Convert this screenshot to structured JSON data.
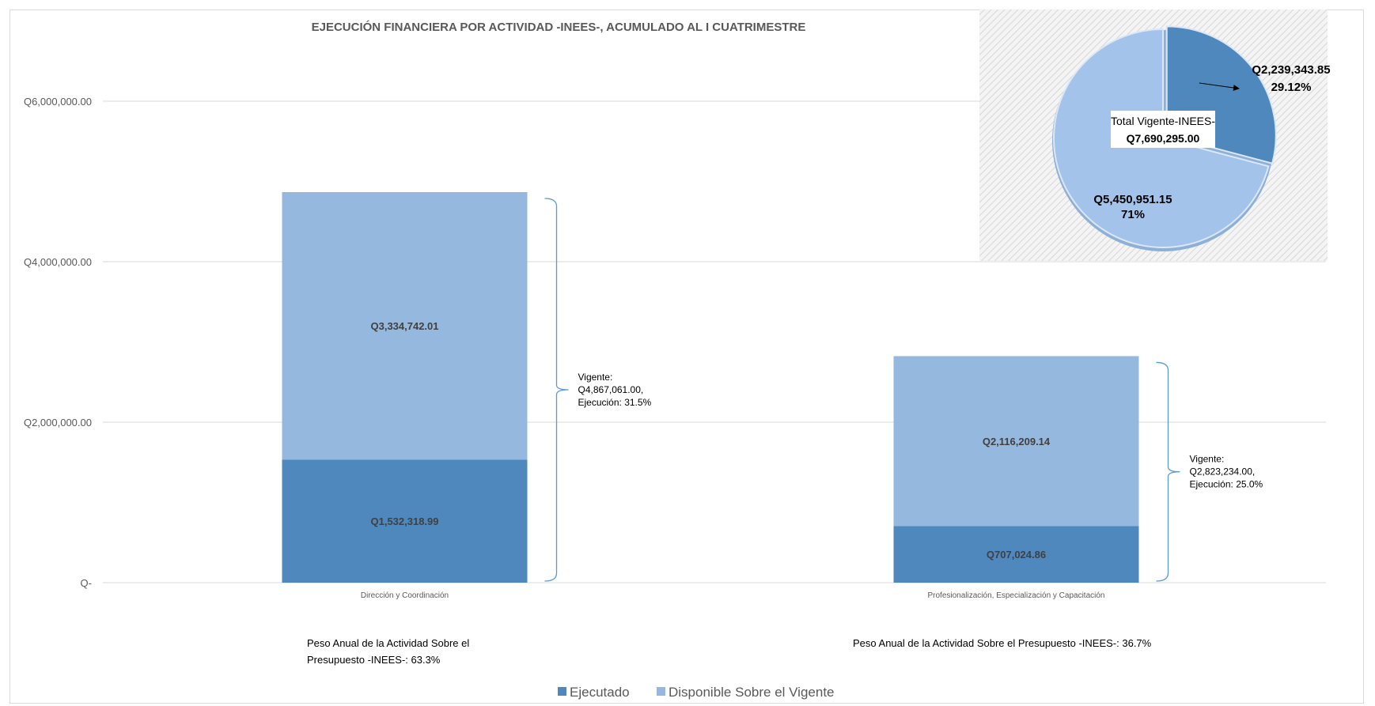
{
  "chart_data": [
    {
      "type": "bar",
      "stacked": true,
      "title": "EJECUCIÓN FINANCIERA POR ACTIVIDAD -INEES-, ACUMULADO AL I CUATRIMESTRE",
      "categories": [
        "Dirección y Coordinación",
        "Profesionalización, Especialización y Capacitación"
      ],
      "series": [
        {
          "name": "Ejecutado",
          "values": [
            1532318.99,
            707024.86
          ],
          "labels": [
            "Q1,532,318.99",
            "Q707,024.86"
          ],
          "color": "#4f88bd"
        },
        {
          "name": "Disponible Sobre el Vigente",
          "values": [
            3334742.01,
            2116209.14
          ],
          "labels": [
            "Q3,334,742.01",
            "Q2,116,209.14"
          ],
          "color": "#95b8df"
        }
      ],
      "ylim": [
        0,
        6000000
      ],
      "yticks": [
        {
          "value": 0,
          "label": "Q-"
        },
        {
          "value": 2000000,
          "label": "Q2,000,000.00"
        },
        {
          "value": 4000000,
          "label": "Q4,000,000.00"
        },
        {
          "value": 6000000,
          "label": "Q6,000,000.00"
        }
      ],
      "grid": true,
      "legend_position": "bottom",
      "annotations": [
        {
          "lines": [
            "Vigente:",
            "Q4,867,061.00,",
            "Ejecución: 31.5%"
          ]
        },
        {
          "lines": [
            "Vigente:",
            "Q2,823,234.00,",
            "Ejecución: 25.0%"
          ]
        }
      ],
      "notes": [
        {
          "lines": [
            "Peso  Anual de la Actividad Sobre el",
            "Presupuesto -INEES-: 63.3%"
          ]
        },
        {
          "lines": [
            "Peso  Anual de la Actividad Sobre el Presupuesto -INEES-: 36.7%"
          ]
        }
      ]
    },
    {
      "type": "pie",
      "slices": [
        {
          "value": 2239343.85,
          "amount_label": "Q2,239,343.85",
          "percent_label": "29.12%",
          "color": "#4f88bd"
        },
        {
          "value": 5450951.15,
          "amount_label": "Q5,450,951.15",
          "percent_label": "71%",
          "color": "#a3c3eb"
        }
      ],
      "center_label": {
        "line1": "Total Vigente-INEES-",
        "line2": "Q7,690,295.00"
      }
    }
  ],
  "colors": {
    "gridline": "#d9d9d9",
    "axis_text": "#595959",
    "brace": "#5b9bd5",
    "pie_background": "#ececec"
  }
}
